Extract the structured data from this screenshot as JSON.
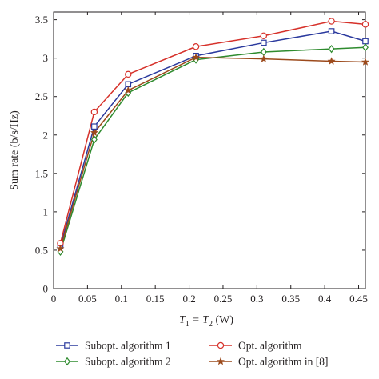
{
  "chart_data": {
    "type": "line",
    "xlabel": {
      "base": "T",
      "sub1": "1",
      "mid": " = T",
      "sub2": "2",
      "unit": " (W)"
    },
    "ylabel": "Sum rate (b/s/Hz)",
    "xlim": [
      0,
      0.46
    ],
    "ylim": [
      0,
      3.6
    ],
    "xticks": [
      0,
      0.05,
      0.1,
      0.15,
      0.2,
      0.25,
      0.3,
      0.35,
      0.4,
      0.45
    ],
    "xtick_labels": [
      "0",
      "0.05",
      "0.1",
      "0.15",
      "0.2",
      "0.25",
      "0.3",
      "0.35",
      "0.4",
      "0.45"
    ],
    "yticks": [
      0,
      0.5,
      1,
      1.5,
      2,
      2.5,
      3,
      3.5
    ],
    "ytick_labels": [
      "0",
      "0.5",
      "1",
      "1.5",
      "2",
      "2.5",
      "3",
      "3.5"
    ],
    "grid": false,
    "legend_position": "bottom",
    "x": [
      0.01,
      0.06,
      0.11,
      0.21,
      0.31,
      0.41,
      0.46
    ],
    "series": [
      {
        "name": "Subopt. algorithm 1",
        "color": "#2b3a9e",
        "marker": "square",
        "values": [
          0.55,
          2.11,
          2.66,
          3.03,
          3.2,
          3.35,
          3.22
        ]
      },
      {
        "name": "Opt. algorithm",
        "color": "#d6312a",
        "marker": "circle",
        "values": [
          0.59,
          2.3,
          2.79,
          3.15,
          3.29,
          3.48,
          3.44
        ]
      },
      {
        "name": "Subopt. algorithm 2",
        "color": "#2e8b2e",
        "marker": "diamond",
        "values": [
          0.48,
          1.94,
          2.55,
          2.98,
          3.08,
          3.12,
          3.14
        ]
      },
      {
        "name": "Opt. algorithm in [8]",
        "color": "#9c4a1c",
        "marker": "star",
        "values": [
          0.52,
          2.03,
          2.58,
          3.01,
          2.99,
          2.96,
          2.95
        ]
      }
    ]
  }
}
